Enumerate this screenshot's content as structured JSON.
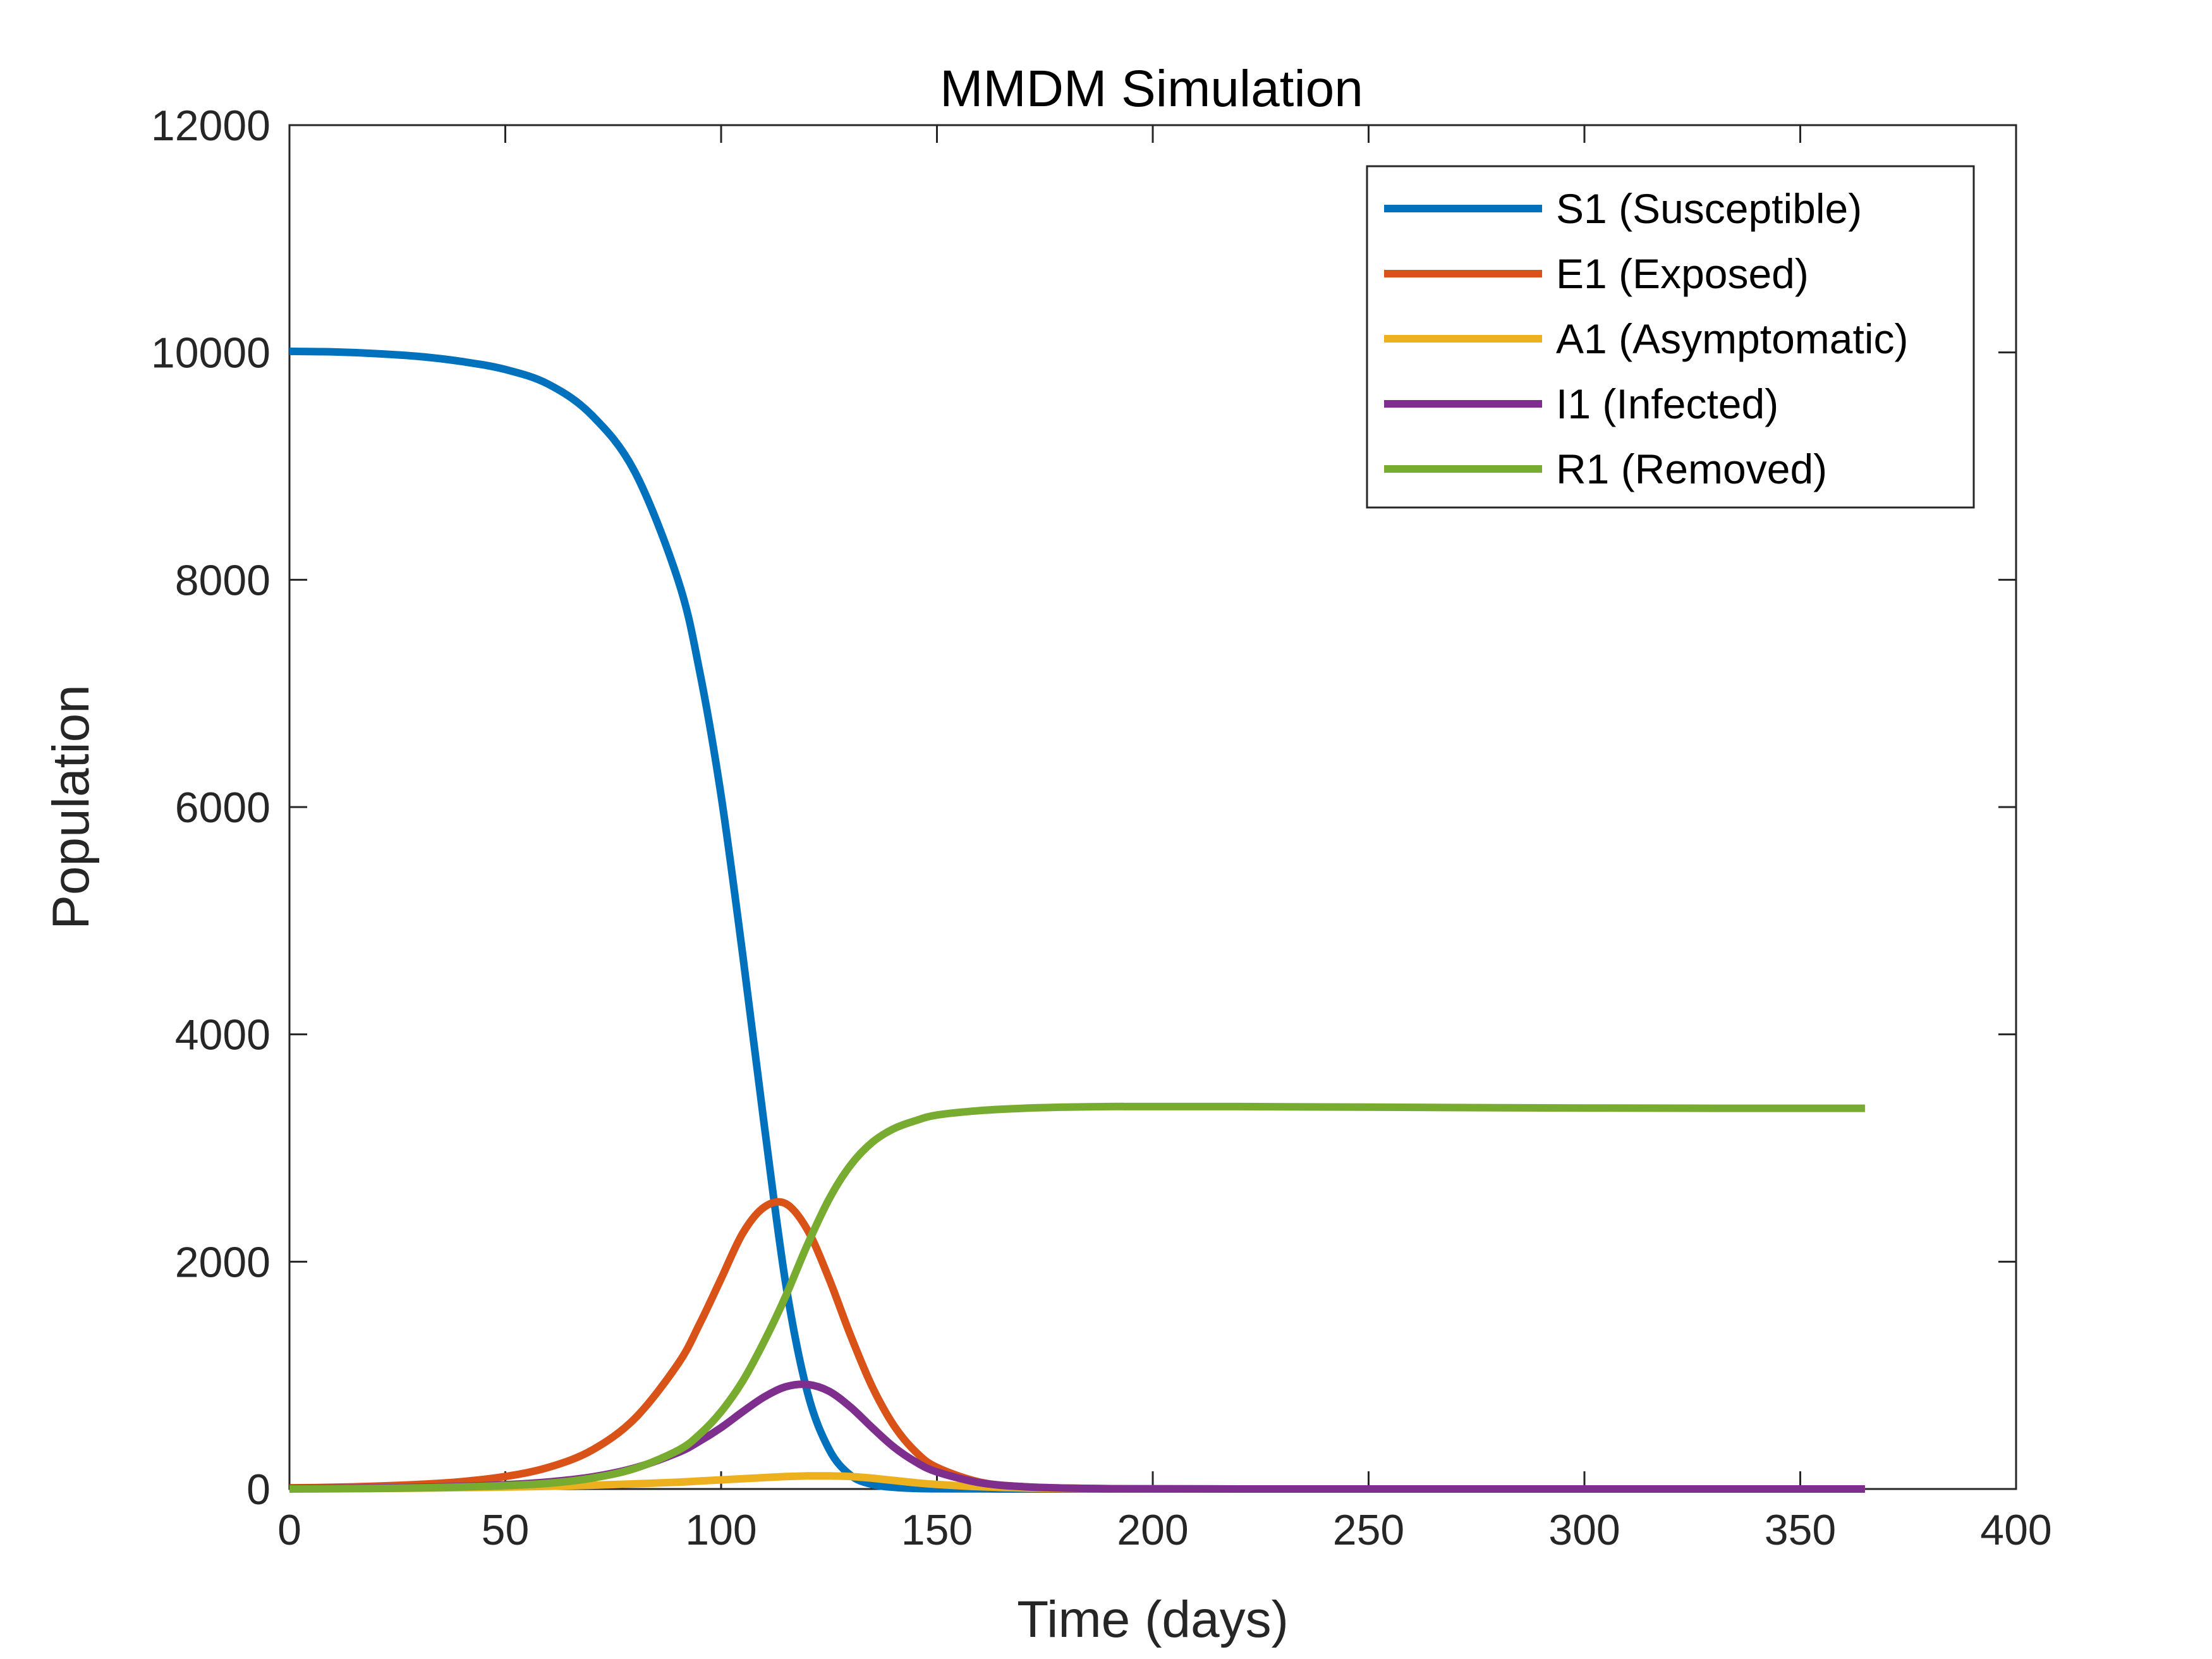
{
  "chart_data": {
    "type": "line",
    "title": "MMDM Simulation",
    "xlabel": "Time (days)",
    "ylabel": "Population",
    "xlim": [
      0,
      400
    ],
    "ylim": [
      0,
      12000
    ],
    "xticks": [
      0,
      50,
      100,
      150,
      200,
      250,
      300,
      350,
      400
    ],
    "yticks": [
      0,
      2000,
      4000,
      6000,
      8000,
      10000,
      12000
    ],
    "xtick_labels": [
      "0",
      "50",
      "100",
      "150",
      "200",
      "250",
      "300",
      "350",
      "400"
    ],
    "ytick_labels": [
      "0",
      "2000",
      "4000",
      "6000",
      "8000",
      "10000",
      "12000"
    ],
    "grid": false,
    "legend_position": "top-right",
    "x": [
      0,
      10,
      20,
      30,
      40,
      50,
      60,
      70,
      80,
      90,
      95,
      100,
      105,
      110,
      115,
      120,
      125,
      130,
      135,
      140,
      145,
      150,
      160,
      170,
      180,
      190,
      200,
      220,
      250,
      280,
      300,
      330,
      365
    ],
    "series": [
      {
        "name": "S1 (Susceptible)",
        "color": "#0072BD",
        "values": [
          10010,
          10005,
          9990,
          9965,
          9920,
          9850,
          9720,
          9450,
          8950,
          8000,
          7200,
          6100,
          4700,
          3200,
          1800,
          850,
          350,
          120,
          40,
          15,
          5,
          2,
          1,
          0,
          0,
          0,
          0,
          0,
          0,
          0,
          0,
          0,
          0
        ]
      },
      {
        "name": "E1 (Exposed)",
        "color": "#D95319",
        "values": [
          10,
          15,
          25,
          40,
          65,
          110,
          190,
          340,
          620,
          1100,
          1450,
          1850,
          2250,
          2480,
          2510,
          2280,
          1850,
          1350,
          900,
          560,
          330,
          190,
          60,
          20,
          8,
          3,
          1,
          0,
          0,
          0,
          0,
          0,
          0
        ]
      },
      {
        "name": "A1 (Asymptomatic)",
        "color": "#EDB120",
        "values": [
          2,
          3,
          5,
          8,
          12,
          17,
          24,
          33,
          45,
          60,
          70,
          80,
          90,
          100,
          110,
          115,
          115,
          110,
          95,
          75,
          55,
          40,
          20,
          9,
          4,
          2,
          1,
          0,
          0,
          0,
          0,
          0,
          0
        ]
      },
      {
        "name": "I1 (Infected)",
        "color": "#7E2F8E",
        "values": [
          5,
          7,
          10,
          15,
          23,
          37,
          62,
          105,
          185,
          320,
          420,
          540,
          680,
          810,
          900,
          920,
          860,
          720,
          540,
          370,
          240,
          150,
          55,
          20,
          8,
          3,
          1,
          0,
          0,
          0,
          0,
          0,
          0
        ]
      },
      {
        "name": "R1 (Removed)",
        "color": "#77AC30",
        "values": [
          0,
          2,
          5,
          10,
          18,
          30,
          50,
          95,
          180,
          340,
          480,
          680,
          950,
          1300,
          1700,
          2150,
          2550,
          2850,
          3050,
          3170,
          3240,
          3290,
          3330,
          3350,
          3360,
          3365,
          3365,
          3365,
          3360,
          3355,
          3352,
          3350,
          3350
        ]
      }
    ]
  }
}
